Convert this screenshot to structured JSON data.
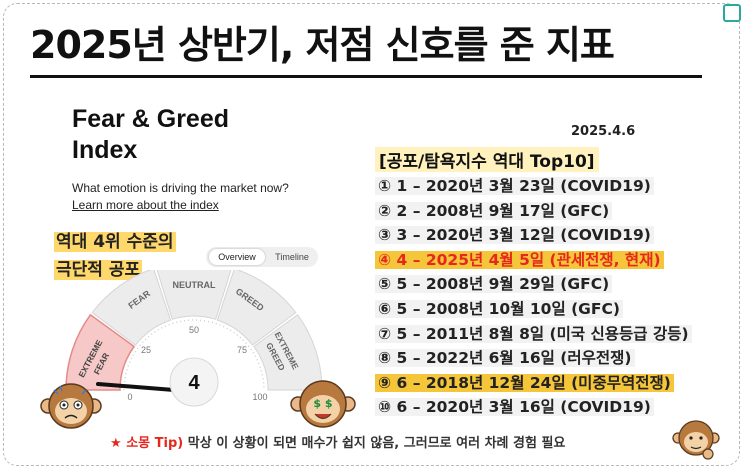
{
  "title": "2025년 상반기, 저점 신호를 준 지표",
  "fear_greed": {
    "title_line1": "Fear & Greed",
    "title_line2": "Index",
    "question": "What emotion is driving the market now?",
    "learn_more": "Learn more about the index",
    "tab_overview": "Overview",
    "tab_timeline": "Timeline",
    "gauge": {
      "value": "4",
      "labels": {
        "extreme_fear_1": "EXTREME",
        "extreme_fear_2": "FEAR",
        "fear": "FEAR",
        "neutral": "NEUTRAL",
        "greed": "GREED",
        "extreme_greed_1": "EXTREME",
        "extreme_greed_2": "GREED"
      },
      "ticks": [
        "0",
        "25",
        "50",
        "75",
        "100"
      ],
      "colors": {
        "extreme_fear": "#f7c8c8",
        "extreme_fear_border": "#e58a8a",
        "segment": "#ececec",
        "needle": "#111111"
      }
    }
  },
  "note": {
    "line1": "역대 4위 수준의",
    "line2": "극단적 공포"
  },
  "date": "2025.4.6",
  "list_title": "[공포/탐욕지수 역대 Top10]",
  "ranks": [
    "① 1 – 2020년 3월 23일 (COVID19)",
    "② 2 – 2008년 9월 17일 (GFC)",
    "③ 3 – 2020년 3월 12일 (COVID19)",
    "④ 4 – 2025년 4월 5일 (관세전쟁, 현재)",
    "⑤ 5 – 2008년 9월 29일 (GFC)",
    "⑥ 5 – 2008년 10월 10일 (GFC)",
    "⑦ 5 – 2011년 8월 8일 (미국 신용등급 강등)",
    "⑧ 5 – 2022년 6월 16일 (러우전쟁)",
    "⑨ 6 – 2018년 12월 24일 (미중무역전쟁)",
    "⑩ 6 – 2020년 3월 16일 (COVID19)"
  ],
  "tip": {
    "star": "★",
    "lead": "소몽 Tip)",
    "text": "막상 이 상황이 되면 매수가 쉽지 않음, 그러므로 여러 차례 경험 필요"
  },
  "colors": {
    "highlight": "#f6c63a",
    "accent_red": "#e5281f",
    "note_bg": "#ffd86b"
  },
  "monkey_signs": "$ $"
}
